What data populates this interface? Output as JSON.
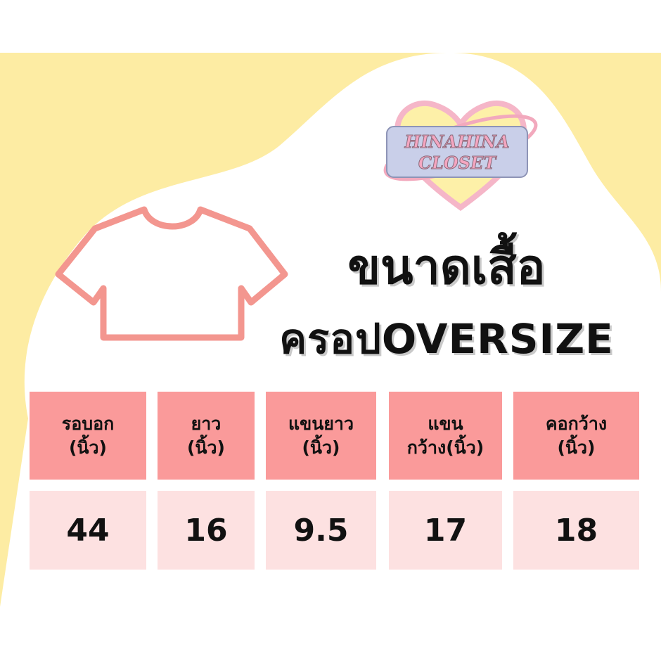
{
  "brand": {
    "logo_text": "HINAHINA CLOSET"
  },
  "title": {
    "line1": "ขนาดเสื้อ",
    "line2": "ครอปOVERSIZE"
  },
  "icon": "t-shirt-outline-icon",
  "colors": {
    "background_yellow": "#fdeca3",
    "header_cell": "#fa9a9a",
    "value_cell": "#fde1e1",
    "shirt_outline": "#f3968f"
  },
  "table": {
    "headers": [
      {
        "line1": "รอบอก",
        "line2": "(นิ้ว)"
      },
      {
        "line1": "ยาว",
        "line2": "(นิ้ว)"
      },
      {
        "line1": "แขนยาว",
        "line2": "(นิ้ว)"
      },
      {
        "line1": "แขน",
        "line2": "กว้าง(นิ้ว)"
      },
      {
        "line1": "คอกว้าง",
        "line2": "(นิ้ว)"
      }
    ],
    "values": [
      "44",
      "16",
      "9.5",
      "17",
      "18"
    ]
  }
}
